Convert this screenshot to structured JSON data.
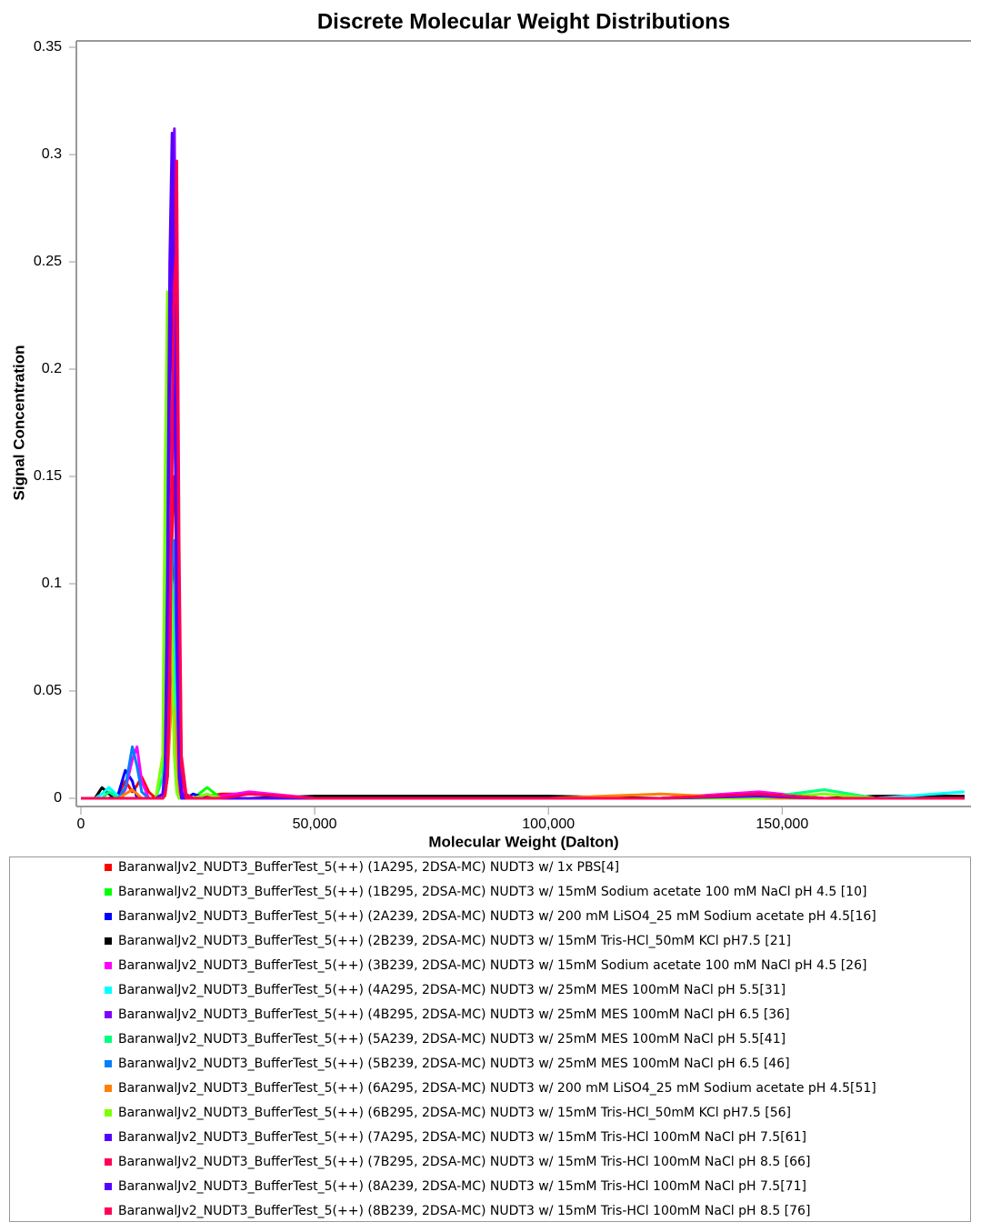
{
  "chart_data": {
    "type": "line",
    "title": "Discrete Molecular Weight Distributions",
    "x_label": "Molecular Weight (Dalton)",
    "y_label": "Signal Concentration",
    "xlim": [
      0,
      190000
    ],
    "ylim": [
      0,
      0.35
    ],
    "xticks": [
      0,
      {
        "value": 50000,
        "label": "50,000"
      },
      {
        "value": 100000,
        "label": "100,000"
      },
      {
        "value": 150000,
        "label": "150,000"
      }
    ],
    "yticks": [
      0,
      0.05,
      0.1,
      0.15,
      0.2,
      0.25,
      0.3,
      0.35
    ],
    "x": [
      0,
      3000,
      4500,
      6000,
      8000,
      9500,
      11000,
      12000,
      13000,
      14500,
      16000,
      17500,
      18000,
      18500,
      19000,
      19500,
      20000,
      20500,
      21000,
      21500,
      22500,
      24000,
      27000,
      30000,
      36000,
      50000,
      100000,
      124000,
      145000,
      159000,
      170000,
      189000
    ],
    "series": [
      {
        "name": "BaranwalJv2_NUDT3_BufferTest_5(++) (1A295, 2DSA-MC) NUDT3 w/ 1x PBS[4]",
        "color": "#ff0000",
        "values": [
          0,
          0,
          0,
          0,
          0.002,
          0.008,
          0.003,
          0.006,
          0.01,
          0.003,
          0,
          0,
          0.002,
          0.01,
          0.05,
          0.12,
          0.15,
          0.13,
          0.05,
          0.01,
          0,
          0,
          0.001,
          0.002,
          0.002,
          0,
          0,
          0,
          0.001,
          0,
          0,
          0
        ]
      },
      {
        "name": "BaranwalJv2_NUDT3_BufferTest_5(++) (1B295, 2DSA-MC) NUDT3 w/ 15mM Sodium acetate 100 mM NaCl pH 4.5 [10]",
        "color": "#00ff00",
        "values": [
          0,
          0,
          0.002,
          0.005,
          0.001,
          0,
          0,
          0,
          0,
          0,
          0,
          0.01,
          0.09,
          0.236,
          0.2,
          0.08,
          0.02,
          0.003,
          0,
          0,
          0,
          0,
          0.005,
          0,
          0,
          0,
          0,
          0,
          0,
          0.004,
          0,
          0
        ]
      },
      {
        "name": "BaranwalJv2_NUDT3_BufferTest_5(++) (2A239, 2DSA-MC) NUDT3 w/ 200 mM LiSO4_25 mM Sodium acetate pH 4.5[16]",
        "color": "#0000ff",
        "values": [
          0,
          0,
          0,
          0,
          0.002,
          0.013,
          0.008,
          0,
          0,
          0,
          0,
          0,
          0.005,
          0.05,
          0.15,
          0.26,
          0.2,
          0.09,
          0.02,
          0.003,
          0,
          0.002,
          0,
          0,
          0,
          0,
          0,
          0,
          0,
          0,
          0,
          0
        ]
      },
      {
        "name": "BaranwalJv2_NUDT3_BufferTest_5(++) (2B239, 2DSA-MC) NUDT3 w/  15mM Tris-HCl_50mM KCl pH7.5 [21]",
        "color": "#000000",
        "values": [
          0,
          0,
          0.005,
          0.002,
          0,
          0,
          0,
          0,
          0,
          0,
          0,
          0,
          0.002,
          0.01,
          0.05,
          0.1,
          0.12,
          0.08,
          0.02,
          0,
          0,
          0,
          0,
          0,
          0,
          0.001,
          0.001,
          0,
          0.002,
          0,
          0.001,
          0.001
        ]
      },
      {
        "name": "BaranwalJv2_NUDT3_BufferTest_5(++) (3B239, 2DSA-MC) NUDT3 w/ 15mM Sodium acetate 100 mM NaCl pH 4.5 [26]",
        "color": "#ff00ff",
        "values": [
          0,
          0,
          0,
          0,
          0,
          0.004,
          0.018,
          0.024,
          0.008,
          0,
          0,
          0,
          0.003,
          0.02,
          0.09,
          0.18,
          0.22,
          0.14,
          0.04,
          0.005,
          0,
          0,
          0,
          0.001,
          0.003,
          0,
          0,
          0,
          0.003,
          0,
          0,
          0
        ]
      },
      {
        "name": "BaranwalJv2_NUDT3_BufferTest_5(++) (4A295, 2DSA-MC) NUDT3 w/ 25mM MES 100mM NaCl pH 5.5[31]",
        "color": "#00ffff",
        "values": [
          0,
          0,
          0.002,
          0.005,
          0.001,
          0,
          0,
          0,
          0,
          0,
          0,
          0,
          0.002,
          0.02,
          0.07,
          0.1,
          0.08,
          0.03,
          0.005,
          0,
          0,
          0,
          0,
          0,
          0,
          0,
          0,
          0,
          0,
          0,
          0,
          0.003
        ]
      },
      {
        "name": "BaranwalJv2_NUDT3_BufferTest_5(++) (4B295, 2DSA-MC) NUDT3 w/ 25mM MES 100mM NaCl pH 6.5 [36]",
        "color": "#7f00ff",
        "values": [
          0,
          0,
          0,
          0,
          0,
          0,
          0,
          0,
          0,
          0,
          0,
          0.002,
          0.01,
          0.06,
          0.2,
          0.28,
          0.312,
          0.15,
          0.03,
          0.003,
          0,
          0,
          0,
          0,
          0,
          0,
          0,
          0,
          0,
          0,
          0,
          0
        ]
      },
      {
        "name": "BaranwalJv2_NUDT3_BufferTest_5(++) (5A239, 2DSA-MC) NUDT3 w/ 25mM MES 100mM NaCl pH 5.5[41]",
        "color": "#00ff7f",
        "values": [
          0,
          0,
          0,
          0.003,
          0,
          0,
          0,
          0,
          0,
          0,
          0,
          0.01,
          0.06,
          0.15,
          0.2,
          0.1,
          0.03,
          0.005,
          0,
          0,
          0,
          0,
          0.002,
          0,
          0,
          0,
          0,
          0,
          0,
          0.004,
          0,
          0
        ]
      },
      {
        "name": "BaranwalJv2_NUDT3_BufferTest_5(++) (5B239, 2DSA-MC) NUDT3 w/ 25mM MES 100mM NaCl pH 6.5 [46]",
        "color": "#007fff",
        "values": [
          0,
          0,
          0,
          0,
          0,
          0.005,
          0.024,
          0.015,
          0.003,
          0,
          0,
          0,
          0.002,
          0.02,
          0.06,
          0.11,
          0.12,
          0.06,
          0.01,
          0,
          0,
          0,
          0,
          0,
          0,
          0,
          0,
          0,
          0,
          0,
          0,
          0
        ]
      },
      {
        "name": "BaranwalJv2_NUDT3_BufferTest_5(++) (6A295, 2DSA-MC) NUDT3 w/ 200 mM LiSO4_25 mM Sodium acetate pH 4.5[51]",
        "color": "#ff7f00",
        "values": [
          0,
          0,
          0,
          0,
          0,
          0.002,
          0.004,
          0.002,
          0,
          0,
          0,
          0,
          0.001,
          0.01,
          0.03,
          0.05,
          0.04,
          0.02,
          0.003,
          0,
          0,
          0,
          0,
          0,
          0,
          0,
          0,
          0.002,
          0,
          0,
          0,
          0
        ]
      },
      {
        "name": "BaranwalJv2_NUDT3_BufferTest_5(++) (6B295, 2DSA-MC) NUDT3 w/  15mM Tris-HCl_50mM KCl pH7.5 [56]",
        "color": "#7fff00",
        "values": [
          0,
          0,
          0,
          0,
          0,
          0,
          0,
          0,
          0,
          0,
          0,
          0.02,
          0.15,
          0.236,
          0.18,
          0.07,
          0.02,
          0.003,
          0,
          0,
          0,
          0,
          0.002,
          0,
          0,
          0,
          0,
          0,
          0,
          0.002,
          0,
          0
        ]
      },
      {
        "name": "BaranwalJv2_NUDT3_BufferTest_5(++) (7A295, 2DSA-MC) NUDT3 w/ 15mM Tris-HCl 100mM NaCl pH 7.5[61]",
        "color": "#5500ff",
        "values": [
          0,
          0,
          0,
          0,
          0,
          0,
          0,
          0,
          0,
          0,
          0,
          0.002,
          0.01,
          0.08,
          0.2,
          0.265,
          0.2,
          0.1,
          0.02,
          0.002,
          0,
          0,
          0,
          0,
          0,
          0,
          0,
          0,
          0.001,
          0,
          0,
          0
        ]
      },
      {
        "name": "BaranwalJv2_NUDT3_BufferTest_5(++) (7B295, 2DSA-MC) NUDT3 w/ 15mM Tris-HCl 100mM NaCl pH 8.5 [66]",
        "color": "#ff0055",
        "values": [
          0,
          0,
          0,
          0,
          0,
          0,
          0,
          0,
          0,
          0,
          0,
          0,
          0.002,
          0.01,
          0.05,
          0.15,
          0.25,
          0.297,
          0.12,
          0.02,
          0.002,
          0,
          0,
          0,
          0,
          0,
          0,
          0,
          0.002,
          0,
          0,
          0
        ]
      },
      {
        "name": "BaranwalJv2_NUDT3_BufferTest_5(++) (8A239, 2DSA-MC) NUDT3 w/ 15mM Tris-HCl 100mM NaCl pH 7.5[71]",
        "color": "#5500ff",
        "values": [
          0,
          0,
          0,
          0,
          0,
          0,
          0,
          0,
          0,
          0,
          0,
          0.002,
          0.015,
          0.1,
          0.25,
          0.31,
          0.22,
          0.08,
          0.01,
          0,
          0,
          0,
          0,
          0,
          0,
          0,
          0,
          0,
          0.002,
          0,
          0,
          0
        ]
      },
      {
        "name": "BaranwalJv2_NUDT3_BufferTest_5(++) (8B239, 2DSA-MC) NUDT3 w/ 15mM Tris-HCl 100mM NaCl pH 8.5 [76]",
        "color": "#ff0055",
        "values": [
          0,
          0,
          0,
          0,
          0,
          0,
          0,
          0,
          0,
          0,
          0,
          0,
          0.002,
          0.01,
          0.06,
          0.18,
          0.24,
          0.26,
          0.1,
          0.015,
          0,
          0,
          0,
          0,
          0.002,
          0,
          0,
          0,
          0.002,
          0,
          0,
          0
        ]
      }
    ]
  }
}
